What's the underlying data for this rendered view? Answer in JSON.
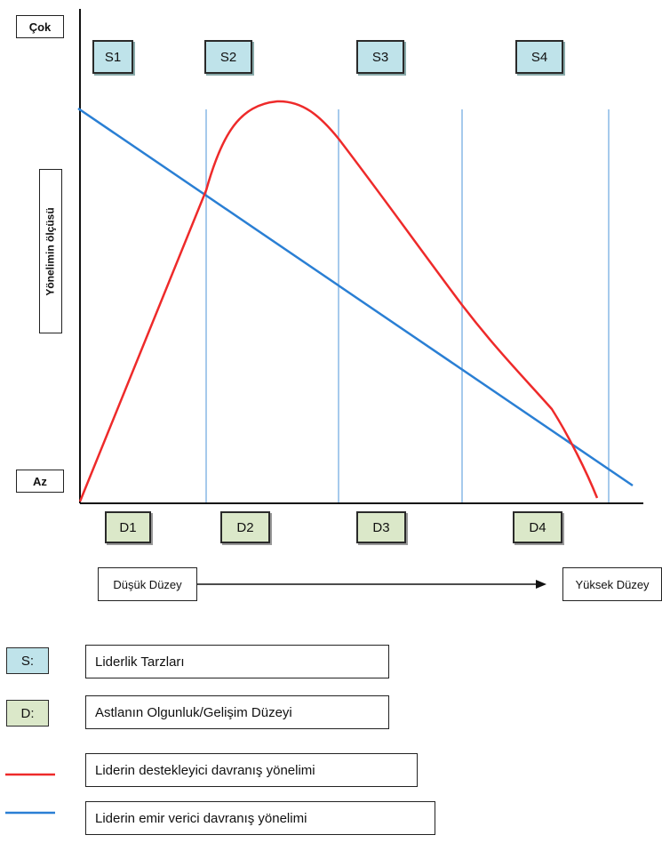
{
  "chart": {
    "y_top_label": "Çok",
    "y_bottom_label": "Az",
    "y_axis_label": "Yönelimin ölçüsü",
    "styles": [
      "S1",
      "S2",
      "S3",
      "S4"
    ],
    "levels": [
      "D1",
      "D2",
      "D3",
      "D4"
    ],
    "low_label": "Düşük Düzey",
    "high_label": "Yüksek Düzey",
    "colors": {
      "supportive": "#ee2a2a",
      "directive": "#2a7fd4",
      "grid": "#88b8e6"
    }
  },
  "legend": {
    "s_key": "S:",
    "s_text": "Liderlik Tarzları",
    "d_key": "D:",
    "d_text": "Astlanın Olgunluk/Gelişim Düzeyi",
    "red_text": "Liderin destekleyici davranış yönelimi",
    "blue_text": "Liderin emir verici davranış yönelimi"
  }
}
